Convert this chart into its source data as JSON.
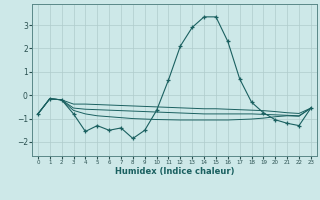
{
  "xlabel": "Humidex (Indice chaleur)",
  "x": [
    0,
    1,
    2,
    3,
    4,
    5,
    6,
    7,
    8,
    9,
    10,
    11,
    12,
    13,
    14,
    15,
    16,
    17,
    18,
    19,
    20,
    21,
    22,
    23
  ],
  "line1": [
    -0.8,
    -0.15,
    -0.2,
    -0.8,
    -1.55,
    -1.3,
    -1.5,
    -1.4,
    -1.85,
    -1.5,
    -0.65,
    0.65,
    2.1,
    2.9,
    3.35,
    3.35,
    2.3,
    0.7,
    -0.3,
    -0.75,
    -1.05,
    -1.2,
    -1.3,
    -0.55
  ],
  "line2": [
    -0.8,
    -0.15,
    -0.2,
    -0.38,
    -0.38,
    -0.4,
    -0.42,
    -0.44,
    -0.46,
    -0.48,
    -0.5,
    -0.52,
    -0.54,
    -0.56,
    -0.58,
    -0.58,
    -0.6,
    -0.62,
    -0.64,
    -0.66,
    -0.7,
    -0.75,
    -0.78,
    -0.55
  ],
  "line3": [
    -0.8,
    -0.15,
    -0.2,
    -0.55,
    -0.6,
    -0.62,
    -0.64,
    -0.66,
    -0.68,
    -0.7,
    -0.72,
    -0.74,
    -0.76,
    -0.78,
    -0.8,
    -0.8,
    -0.8,
    -0.8,
    -0.8,
    -0.82,
    -0.84,
    -0.86,
    -0.88,
    -0.55
  ],
  "line4": [
    -0.8,
    -0.15,
    -0.2,
    -0.65,
    -0.8,
    -0.88,
    -0.92,
    -0.96,
    -1.0,
    -1.02,
    -1.04,
    -1.05,
    -1.06,
    -1.06,
    -1.06,
    -1.06,
    -1.06,
    -1.04,
    -1.02,
    -0.98,
    -0.92,
    -0.88,
    -0.9,
    -0.55
  ],
  "background_color": "#cde8e8",
  "grid_color": "#b0cccc",
  "line_color": "#1a6060",
  "ylim": [
    -2.6,
    3.9
  ],
  "yticks": [
    -2,
    -1,
    0,
    1,
    2,
    3
  ],
  "xticks": [
    0,
    1,
    2,
    3,
    4,
    5,
    6,
    7,
    8,
    9,
    10,
    11,
    12,
    13,
    14,
    15,
    16,
    17,
    18,
    19,
    20,
    21,
    22,
    23
  ]
}
